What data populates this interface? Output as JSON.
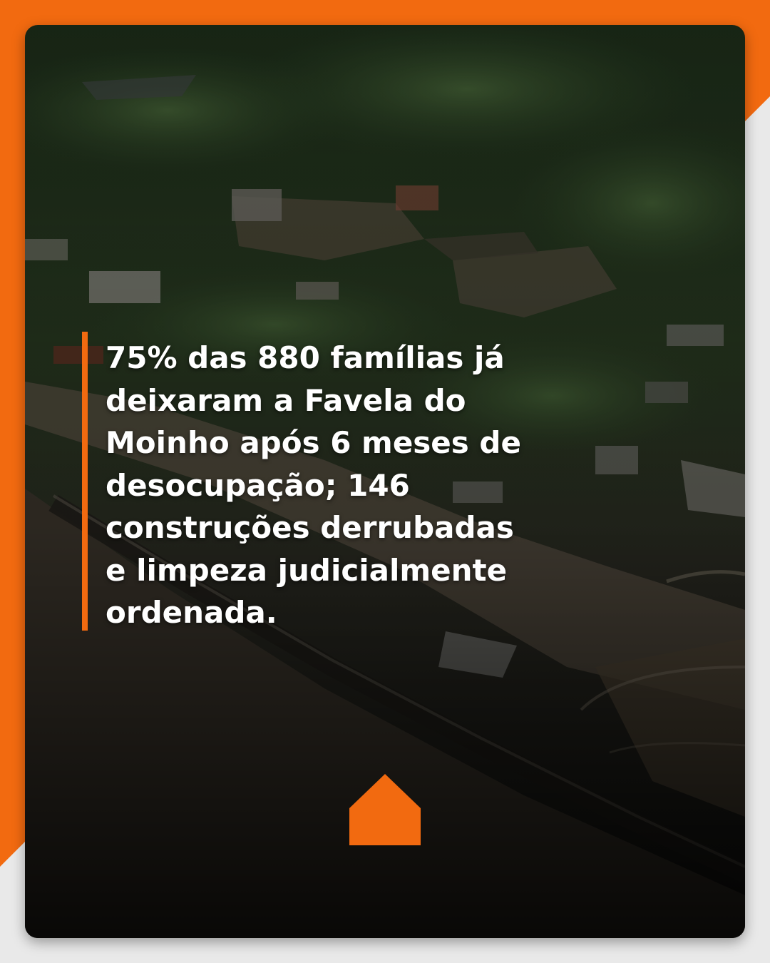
{
  "post": {
    "headline": "75% das 880 famílias já deixaram a Favela do Moinho após 6 meses de desocupação; 146 construções derrubadas e limpeza judicialmente ordenada."
  },
  "icons": {
    "bottom": "home-icon"
  },
  "colors": {
    "accent": "#f26a10",
    "background": "#e9e9e9",
    "text": "#ffffff"
  }
}
